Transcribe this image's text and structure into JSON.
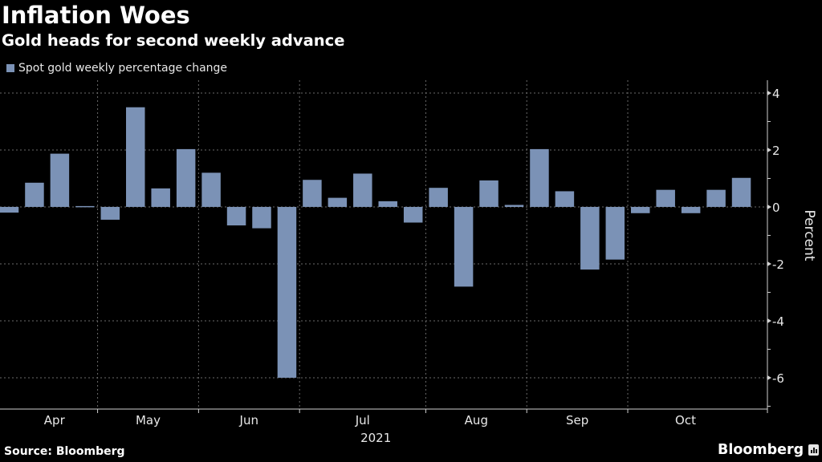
{
  "header": {
    "title": "Inflation Woes",
    "subtitle": "Gold heads for second weekly advance"
  },
  "footer": {
    "source": "Source: Bloomberg",
    "brand": "Bloomberg",
    "brand_icon": "bloomberg-chart-bubble-icon"
  },
  "colors": {
    "background": "#000000",
    "bar": "#7b92b6",
    "grid": "#6a6a6a",
    "axis": "#d0d0d0"
  },
  "chart_data": {
    "type": "bar",
    "title": "Inflation Woes",
    "subtitle": "Gold heads for second weekly advance",
    "xlabel": "2021",
    "ylabel": "Percent",
    "ylim": [
      -7.1,
      4.45
    ],
    "yticks": [
      4,
      2,
      0,
      -2,
      -4,
      -6
    ],
    "ytick_labels": [
      "4",
      "2",
      "0",
      "-2",
      "-4",
      "-6"
    ],
    "y_axis_side": "right",
    "grid": true,
    "legend": {
      "position": "top-left",
      "entries": [
        "Spot gold weekly percentage change"
      ]
    },
    "x_month_labels": [
      "Apr",
      "May",
      "Jun",
      "Jul",
      "Aug",
      "Sep",
      "Oct"
    ],
    "x_year_label": "2021",
    "month_boundaries_after_week": [
      4,
      8,
      12,
      17,
      21,
      25
    ],
    "series": [
      {
        "name": "Spot gold weekly percentage change",
        "values": [
          -0.2,
          0.85,
          1.87,
          0.03,
          -0.45,
          3.5,
          0.65,
          2.03,
          1.2,
          -0.65,
          -0.75,
          -6.0,
          0.95,
          0.32,
          1.17,
          0.2,
          -0.55,
          0.67,
          -2.8,
          0.93,
          0.07,
          2.03,
          0.55,
          -2.2,
          -1.85,
          -0.22,
          0.6,
          -0.22,
          0.6,
          1.02
        ]
      }
    ]
  }
}
